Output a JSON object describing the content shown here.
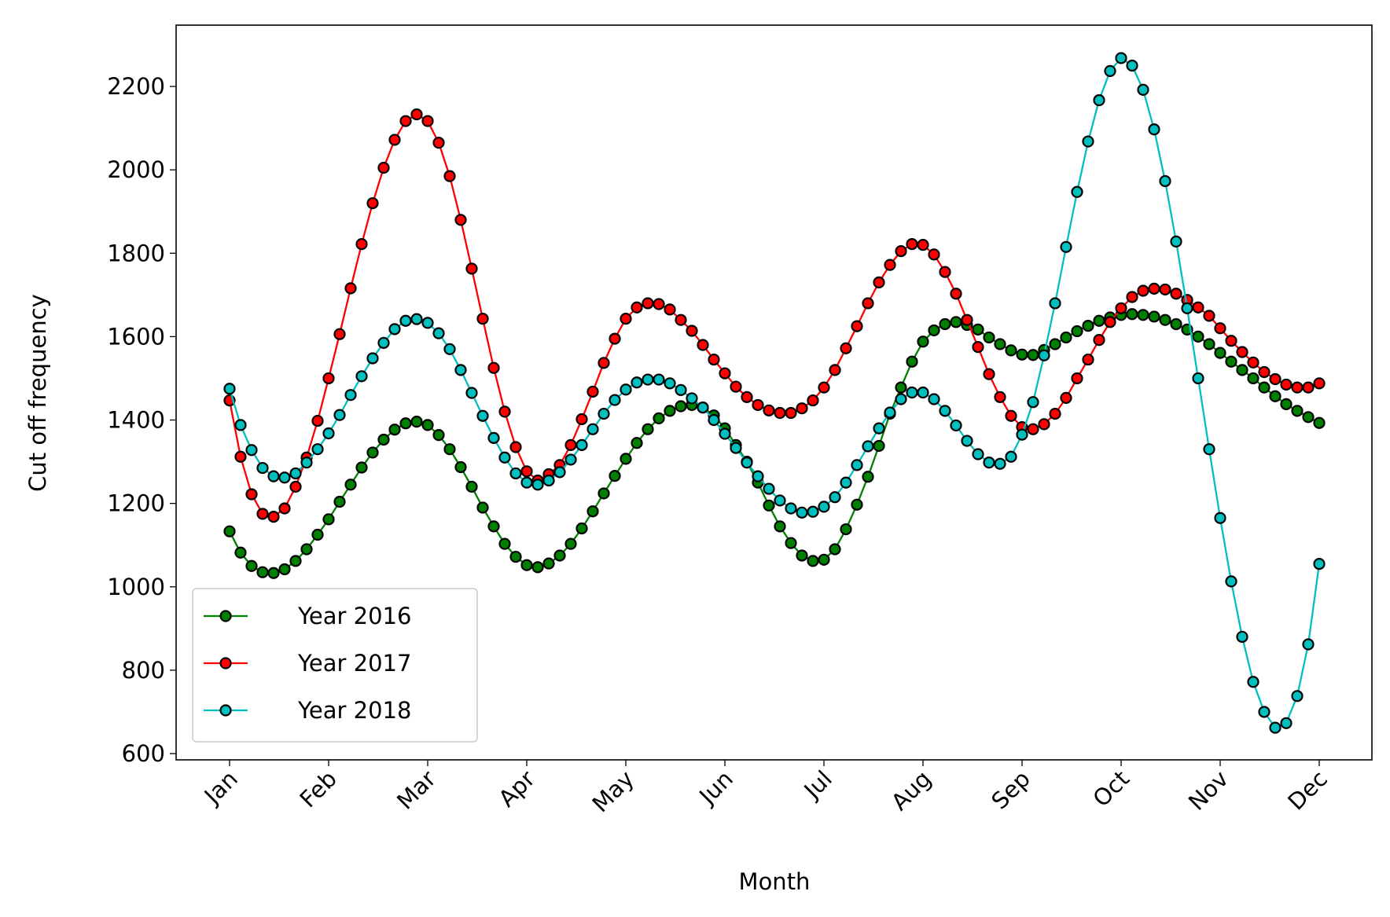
{
  "chart_data": {
    "type": "line",
    "x_label": "Month",
    "y_label": "Cut off frequency",
    "categories": [
      "Jan",
      null,
      null,
      null,
      null,
      null,
      null,
      null,
      null,
      "Feb",
      null,
      null,
      null,
      null,
      null,
      null,
      null,
      null,
      "Mar",
      null,
      null,
      null,
      null,
      null,
      null,
      null,
      null,
      "Apr",
      null,
      null,
      null,
      null,
      null,
      null,
      null,
      null,
      "May",
      null,
      null,
      null,
      null,
      null,
      null,
      null,
      null,
      "Jun",
      null,
      null,
      null,
      null,
      null,
      null,
      null,
      null,
      "Jul",
      null,
      null,
      null,
      null,
      null,
      null,
      null,
      null,
      "Aug",
      null,
      null,
      null,
      null,
      null,
      null,
      null,
      null,
      "Sep",
      null,
      null,
      null,
      null,
      null,
      null,
      null,
      null,
      "Oct",
      null,
      null,
      null,
      null,
      null,
      null,
      null,
      null,
      "Nov",
      null,
      null,
      null,
      null,
      null,
      null,
      null,
      null,
      "Dec"
    ],
    "series": [
      {
        "name": "Year 2016",
        "color": "#008000",
        "values": [
          1133,
          1082,
          1050,
          1035,
          1033,
          1042,
          1062,
          1090,
          1125,
          1162,
          1204,
          1245,
          1286,
          1322,
          1353,
          1377,
          1392,
          1396,
          1388,
          1364,
          1330,
          1287,
          1240,
          1190,
          1145,
          1103,
          1072,
          1052,
          1047,
          1056,
          1075,
          1103,
          1140,
          1181,
          1224,
          1266,
          1307,
          1345,
          1378,
          1404,
          1422,
          1433,
          1436,
          1430,
          1411,
          1380,
          1340,
          1300,
          1250,
          1195,
          1145,
          1105,
          1075,
          1062,
          1065,
          1090,
          1138,
          1197,
          1264,
          1338,
          1415,
          1478,
          1540,
          1588,
          1615,
          1630,
          1635,
          1628,
          1617,
          1598,
          1582,
          1567,
          1557,
          1556,
          1568,
          1582,
          1598,
          1613,
          1626,
          1638,
          1646,
          1652,
          1654,
          1652,
          1648,
          1640,
          1630,
          1617,
          1600,
          1582,
          1561,
          1540,
          1520,
          1500,
          1478,
          1457,
          1438,
          1422,
          1407,
          1393
        ]
      },
      {
        "name": "Year 2017",
        "color": "#ff0000",
        "values": [
          1447,
          1312,
          1222,
          1175,
          1168,
          1188,
          1240,
          1310,
          1398,
          1500,
          1606,
          1716,
          1822,
          1920,
          2005,
          2072,
          2117,
          2133,
          2117,
          2065,
          1985,
          1880,
          1763,
          1643,
          1525,
          1420,
          1335,
          1277,
          1255,
          1270,
          1292,
          1340,
          1402,
          1468,
          1537,
          1595,
          1643,
          1670,
          1680,
          1678,
          1665,
          1640,
          1614,
          1580,
          1545,
          1512,
          1480,
          1455,
          1436,
          1423,
          1417,
          1417,
          1428,
          1447,
          1478,
          1520,
          1572,
          1625,
          1680,
          1730,
          1772,
          1805,
          1822,
          1820,
          1797,
          1755,
          1703,
          1640,
          1575,
          1510,
          1455,
          1410,
          1383,
          1378,
          1390,
          1415,
          1453,
          1500,
          1545,
          1592,
          1635,
          1668,
          1695,
          1710,
          1715,
          1713,
          1703,
          1688,
          1670,
          1650,
          1620,
          1590,
          1563,
          1538,
          1515,
          1498,
          1485,
          1478,
          1478,
          1488
        ]
      },
      {
        "name": "Year 2018",
        "color": "#00bfbf",
        "values": [
          1475,
          1388,
          1328,
          1285,
          1265,
          1262,
          1272,
          1298,
          1330,
          1368,
          1412,
          1460,
          1505,
          1548,
          1585,
          1618,
          1638,
          1642,
          1633,
          1608,
          1570,
          1520,
          1465,
          1410,
          1357,
          1310,
          1272,
          1250,
          1245,
          1255,
          1275,
          1305,
          1340,
          1378,
          1415,
          1448,
          1473,
          1490,
          1497,
          1497,
          1488,
          1472,
          1452,
          1430,
          1400,
          1367,
          1333,
          1298,
          1265,
          1235,
          1207,
          1188,
          1178,
          1180,
          1192,
          1215,
          1250,
          1292,
          1337,
          1380,
          1418,
          1450,
          1466,
          1466,
          1450,
          1422,
          1387,
          1350,
          1318,
          1298,
          1295,
          1312,
          1365,
          1443,
          1555,
          1680,
          1815,
          1947,
          2068,
          2167,
          2237,
          2268,
          2250,
          2192,
          2097,
          1973,
          1828,
          1668,
          1500,
          1330,
          1165,
          1013,
          880,
          772,
          700,
          662,
          673,
          738,
          862,
          1055
        ]
      }
    ],
    "ylim": [
      585,
      2347
    ],
    "yticks": [
      600,
      800,
      1000,
      1200,
      1400,
      1600,
      1800,
      2000,
      2200
    ],
    "marker_edge_color": "#000000",
    "legend": "lower left"
  }
}
